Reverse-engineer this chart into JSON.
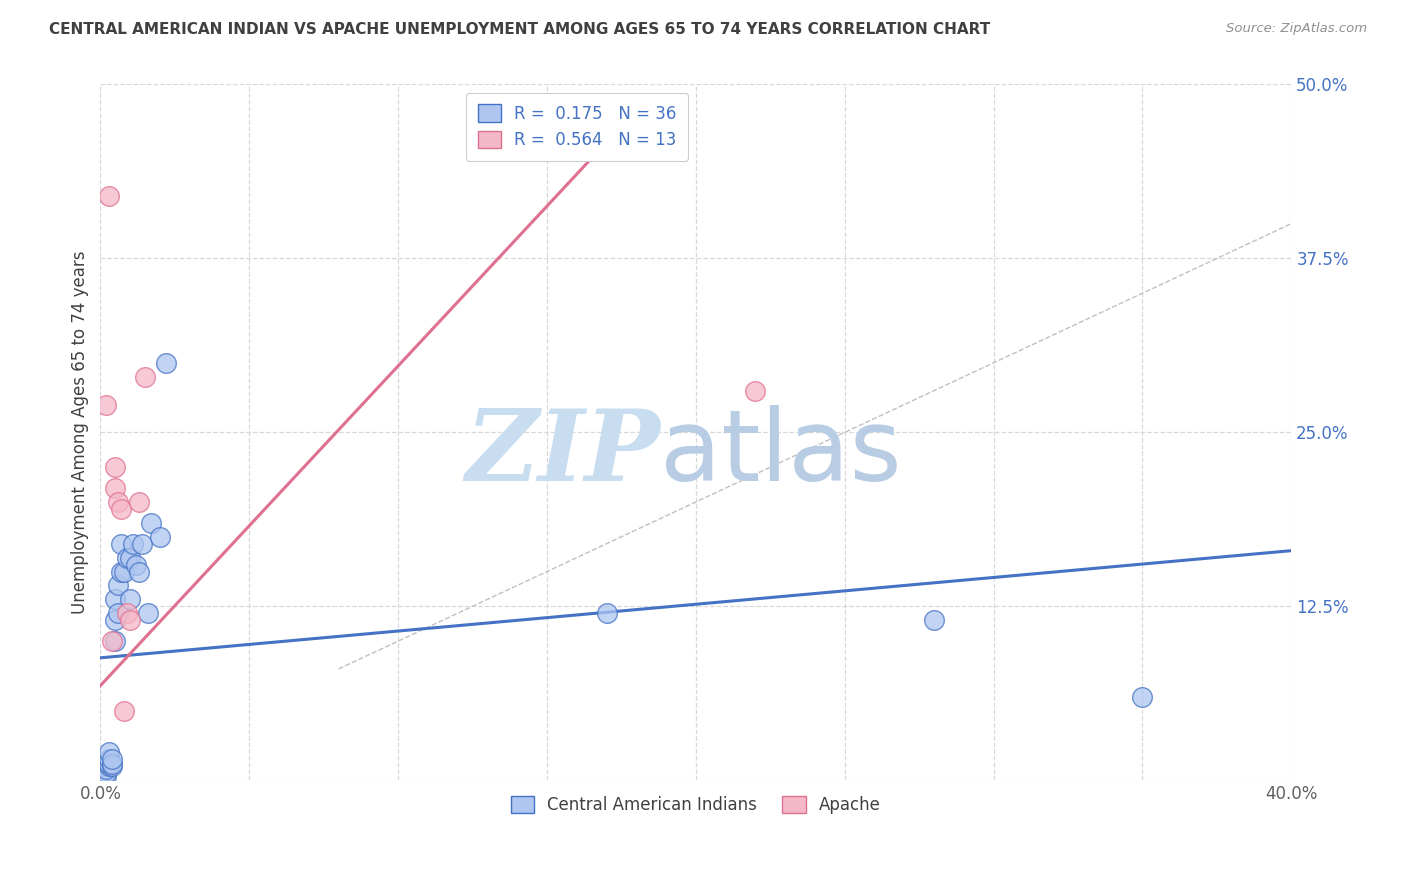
{
  "title": "CENTRAL AMERICAN INDIAN VS APACHE UNEMPLOYMENT AMONG AGES 65 TO 74 YEARS CORRELATION CHART",
  "source": "Source: ZipAtlas.com",
  "ylabel": "Unemployment Among Ages 65 to 74 years",
  "xlim": [
    0.0,
    0.4
  ],
  "ylim": [
    0.0,
    0.5
  ],
  "xticks": [
    0.0,
    0.05,
    0.1,
    0.15,
    0.2,
    0.25,
    0.3,
    0.35,
    0.4
  ],
  "xticklabels": [
    "0.0%",
    "",
    "",
    "",
    "",
    "",
    "",
    "",
    "40.0%"
  ],
  "yticks_right": [
    0.0,
    0.125,
    0.25,
    0.375,
    0.5
  ],
  "yticklabels_right": [
    "",
    "12.5%",
    "25.0%",
    "37.5%",
    "50.0%"
  ],
  "blue_R": 0.175,
  "blue_N": 36,
  "pink_R": 0.564,
  "pink_N": 13,
  "blue_color": "#aec6f0",
  "pink_color": "#f4b8c8",
  "blue_line_color": "#4472c4",
  "pink_line_color": "#e07090",
  "diag_color": "#c0c0c0",
  "blue_points_x": [
    0.001,
    0.001,
    0.001,
    0.001,
    0.002,
    0.002,
    0.002,
    0.003,
    0.003,
    0.003,
    0.003,
    0.004,
    0.004,
    0.004,
    0.005,
    0.005,
    0.005,
    0.006,
    0.006,
    0.007,
    0.007,
    0.008,
    0.009,
    0.01,
    0.01,
    0.011,
    0.012,
    0.013,
    0.014,
    0.016,
    0.017,
    0.02,
    0.022,
    0.17,
    0.28,
    0.35
  ],
  "blue_points_y": [
    0.003,
    0.005,
    0.007,
    0.01,
    0.003,
    0.005,
    0.008,
    0.01,
    0.012,
    0.015,
    0.02,
    0.01,
    0.012,
    0.015,
    0.1,
    0.115,
    0.13,
    0.12,
    0.14,
    0.15,
    0.17,
    0.15,
    0.16,
    0.13,
    0.16,
    0.17,
    0.155,
    0.15,
    0.17,
    0.12,
    0.185,
    0.175,
    0.3,
    0.12,
    0.115,
    0.06
  ],
  "pink_points_x": [
    0.002,
    0.003,
    0.004,
    0.005,
    0.005,
    0.006,
    0.007,
    0.008,
    0.009,
    0.01,
    0.013,
    0.015,
    0.22
  ],
  "pink_points_y": [
    0.27,
    0.42,
    0.1,
    0.21,
    0.225,
    0.2,
    0.195,
    0.05,
    0.12,
    0.115,
    0.2,
    0.29,
    0.28
  ],
  "blue_line_x": [
    0.0,
    0.4
  ],
  "blue_line_y": [
    0.088,
    0.165
  ],
  "pink_line_x": [
    0.0,
    0.175
  ],
  "pink_line_y": [
    0.068,
    0.47
  ],
  "diag_line_x": [
    0.08,
    0.4
  ],
  "diag_line_y": [
    0.08,
    0.4
  ],
  "watermark_zip": "ZIP",
  "watermark_atlas": "atlas",
  "watermark_color_zip": "#c8ddf0",
  "watermark_color_atlas": "#b8cce4",
  "background_color": "#ffffff",
  "grid_color": "#d8d8d8",
  "title_color": "#404040",
  "source_color": "#909090",
  "label_color": "#404040",
  "tick_color": "#606060",
  "right_tick_color": "#4472c4"
}
